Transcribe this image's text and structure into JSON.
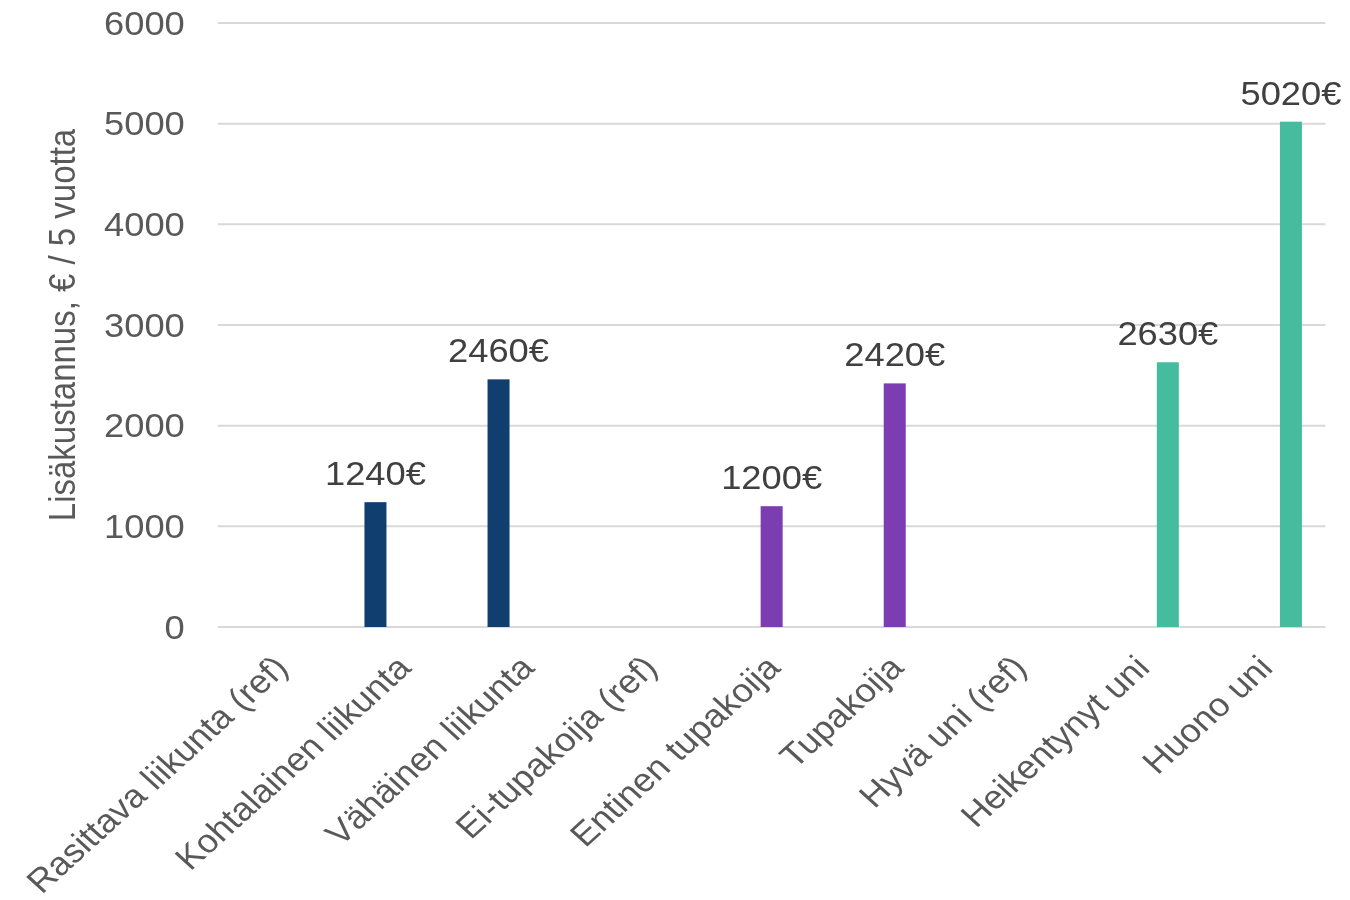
{
  "chart_data": {
    "type": "bar",
    "ylabel": "Lisäkustannus, € / 5 vuotta",
    "categories": [
      "Rasittava liikunta (ref)",
      "Kohtalainen liikunta",
      "Vähäinen liikunta",
      "Ei-tupakoija (ref)",
      "Entinen tupakoija",
      "Tupakoija",
      "Hyvä uni (ref)",
      "Heikentynyt uni",
      "Huono uni"
    ],
    "series": [
      {
        "color": "#0f3e6f",
        "values": [
          null,
          1240,
          2460,
          null,
          null,
          null,
          null,
          null,
          null
        ],
        "value_labels": [
          null,
          "1240€",
          "2460€",
          null,
          null,
          null,
          null,
          null,
          null
        ]
      },
      {
        "color": "#7b3db1",
        "values": [
          null,
          null,
          null,
          null,
          1200,
          2420,
          null,
          null,
          null
        ],
        "value_labels": [
          null,
          null,
          null,
          null,
          "1200€",
          "2420€",
          null,
          null,
          null
        ]
      },
      {
        "color": "#46bc9e",
        "values": [
          null,
          null,
          null,
          null,
          null,
          null,
          null,
          2630,
          5020
        ],
        "value_labels": [
          null,
          null,
          null,
          null,
          null,
          null,
          null,
          "2630€",
          "5020€"
        ]
      }
    ],
    "ylim": [
      0,
      6000
    ],
    "yticks": [
      0,
      1000,
      2000,
      3000,
      4000,
      5000,
      6000
    ],
    "grid": "y"
  }
}
